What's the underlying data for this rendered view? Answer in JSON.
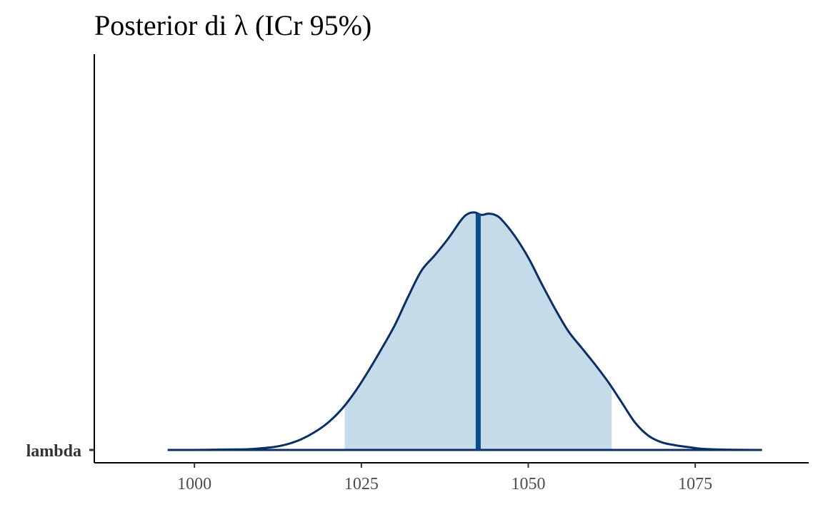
{
  "chart_data": {
    "type": "area",
    "title": "Posterior di λ (ICr 95%)",
    "xlabel": "",
    "ylabel": "",
    "xlim": [
      985,
      1092
    ],
    "x_ticks": [
      1000,
      1025,
      1050,
      1075
    ],
    "y_categories": [
      "lambda"
    ],
    "grid": false,
    "legend": "none",
    "series": [
      {
        "name": "lambda",
        "density": {
          "x": [
            996,
            1000,
            1005,
            1008,
            1010,
            1012,
            1014,
            1016,
            1018,
            1020,
            1022,
            1024,
            1026,
            1028,
            1030,
            1032,
            1034,
            1036,
            1038,
            1040,
            1041,
            1042,
            1043,
            1044,
            1045,
            1046,
            1048,
            1050,
            1052,
            1054,
            1056,
            1058,
            1060,
            1062,
            1064,
            1066,
            1068,
            1070,
            1072,
            1074,
            1076,
            1080,
            1085
          ],
          "y": [
            0.0,
            0.0,
            0.002,
            0.003,
            0.007,
            0.013,
            0.025,
            0.045,
            0.075,
            0.115,
            0.17,
            0.243,
            0.33,
            0.425,
            0.525,
            0.645,
            0.755,
            0.82,
            0.89,
            0.97,
            0.995,
            1.0,
            0.99,
            0.995,
            0.99,
            0.97,
            0.9,
            0.81,
            0.7,
            0.595,
            0.5,
            0.43,
            0.36,
            0.285,
            0.2,
            0.115,
            0.06,
            0.032,
            0.02,
            0.012,
            0.005,
            0.001,
            0.0
          ]
        },
        "ci_95": [
          1022.5,
          1062.5
        ],
        "median": 1042.5
      }
    ],
    "colors": {
      "ci_fill": "#c6dbe9",
      "outline": "#0b2e66",
      "median_line": "#0b4a8c",
      "axis": "#000000"
    }
  }
}
